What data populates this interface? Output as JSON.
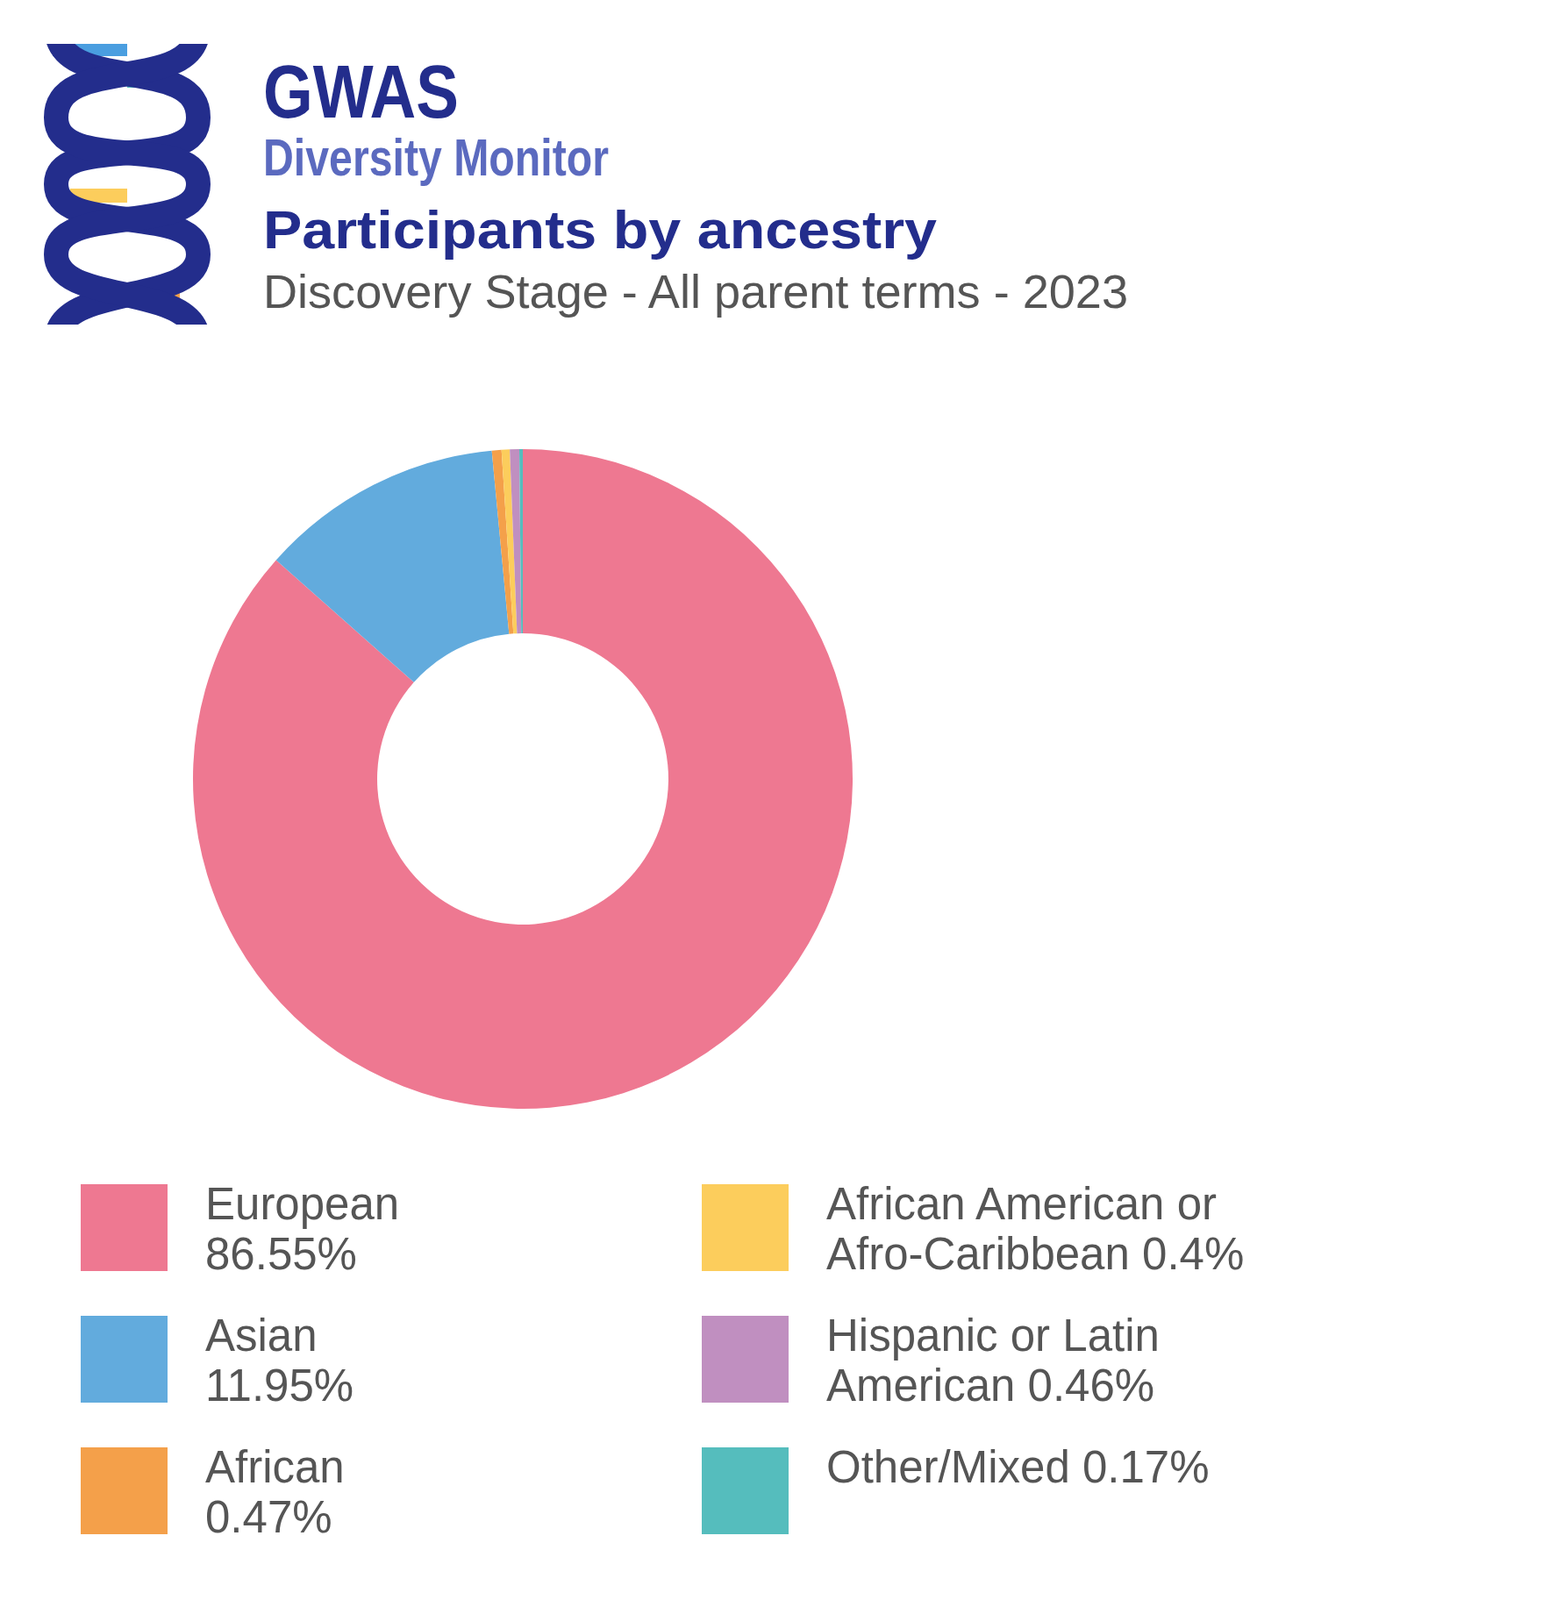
{
  "logo": {
    "title": "GWAS",
    "subtitle": "Diversity Monitor"
  },
  "chart_data": {
    "type": "donut",
    "title": "Participants by ancestry",
    "subtitle": "Discovery Stage - All parent terms - 2023",
    "categories": [
      "European",
      "Asian",
      "African",
      "African American or Afro-Caribbean",
      "Hispanic or Latin American",
      "Other/Mixed"
    ],
    "values": [
      86.55,
      11.95,
      0.47,
      0.4,
      0.46,
      0.17
    ],
    "value_labels": [
      "86.55%",
      "11.95%",
      "0.47%",
      "0.4%",
      "0.46%",
      "0.17%"
    ],
    "colors": [
      "#ee7891",
      "#62abdd",
      "#f4a04a",
      "#fccd5c",
      "#c08fc0",
      "#55bdbd"
    ],
    "legend": "bottom"
  }
}
